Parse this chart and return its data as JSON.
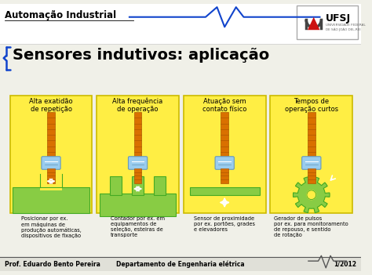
{
  "bg_color": "#f0f0e8",
  "header_bg": "#ffffff",
  "title_text": "Sensores indutivos: aplicação",
  "header_label": "Automação Industrial",
  "footer_left": "Prof. Eduardo Bento Pereira",
  "footer_center": "Departamento de Engenharia elétrica",
  "footer_right": "1/2012",
  "panel_titles": [
    "Alta exatidão\nde repetição",
    "Alta frequência\nde operação",
    "Atuação sem\ncontato físico",
    "Tempos de\noperação curtos"
  ],
  "panel_captions": [
    "Posicionar por ex.\nem máquinas de\nprodução automáticas,\ndispositivos de fixação",
    "Contador por ex. em\nequipamentos de\nseleção, esteiras de\ntransporte",
    "Sensor de proximidade\npor ex. portões, grades\ne elevadores",
    "Gerador de pulsos\npor ex. para monitoramento\nde repouso, e sentido\nde rotação"
  ],
  "sensor_body_color": "#d97000",
  "sensor_thread_color": "#b05800",
  "sensor_collar_color": "#99ccee",
  "sensor_collar_dark": "#6699bb",
  "green_light": "#88cc44",
  "green_dark": "#44aa22",
  "green_mid": "#66aa33",
  "header_line_color": "#1144cc",
  "footer_line_color": "#555555",
  "panel_bg": "#ffee44",
  "panel_border": "#ccbb00"
}
